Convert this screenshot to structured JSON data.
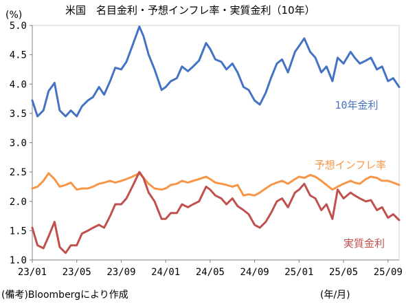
{
  "title": "米国　名目金利・予想インフレ率・実質金利（10年）",
  "source_note": "(備考)Bloombergにより作成",
  "chart_data": {
    "type": "line",
    "title": "米国　名目金利・予想インフレ率・実質金利（10年）",
    "y_unit_label": "(%)",
    "x_unit_label": "(年/月)",
    "ylim": [
      1.0,
      5.0
    ],
    "y_ticks": [
      "1.0",
      "1.5",
      "2.0",
      "2.5",
      "3.0",
      "3.5",
      "4.0",
      "4.5",
      "5.0"
    ],
    "x_ticks": [
      "23/01",
      "23/05",
      "23/09",
      "24/01",
      "24/05",
      "24/09",
      "25/01",
      "25/05",
      "25/09"
    ],
    "x_range": [
      "2023-01",
      "2025-10"
    ],
    "grid": false,
    "legend": "inline labels near right end of each line",
    "series": [
      {
        "name": "10年金利",
        "color": "#4472C4",
        "points": [
          [
            "2023-01",
            3.72
          ],
          [
            "2023-01-15",
            3.45
          ],
          [
            "2023-02",
            3.55
          ],
          [
            "2023-02-15",
            3.88
          ],
          [
            "2023-03",
            4.02
          ],
          [
            "2023-03-15",
            3.55
          ],
          [
            "2023-04",
            3.45
          ],
          [
            "2023-04-15",
            3.55
          ],
          [
            "2023-05",
            3.45
          ],
          [
            "2023-05-15",
            3.62
          ],
          [
            "2023-06",
            3.72
          ],
          [
            "2023-06-15",
            3.78
          ],
          [
            "2023-07",
            3.95
          ],
          [
            "2023-07-15",
            3.82
          ],
          [
            "2023-08",
            4.05
          ],
          [
            "2023-08-15",
            4.28
          ],
          [
            "2023-09",
            4.25
          ],
          [
            "2023-09-15",
            4.38
          ],
          [
            "2023-10",
            4.65
          ],
          [
            "2023-10-20",
            4.98
          ],
          [
            "2023-11",
            4.82
          ],
          [
            "2023-11-15",
            4.5
          ],
          [
            "2023-12",
            4.25
          ],
          [
            "2023-12-20",
            3.9
          ],
          [
            "2024-01",
            3.95
          ],
          [
            "2024-01-15",
            4.05
          ],
          [
            "2024-02",
            4.1
          ],
          [
            "2024-02-15",
            4.3
          ],
          [
            "2024-03",
            4.22
          ],
          [
            "2024-03-15",
            4.3
          ],
          [
            "2024-04",
            4.4
          ],
          [
            "2024-04-20",
            4.7
          ],
          [
            "2024-05",
            4.6
          ],
          [
            "2024-05-15",
            4.42
          ],
          [
            "2024-06",
            4.38
          ],
          [
            "2024-06-15",
            4.25
          ],
          [
            "2024-07",
            4.35
          ],
          [
            "2024-07-15",
            4.2
          ],
          [
            "2024-08",
            3.95
          ],
          [
            "2024-08-15",
            3.9
          ],
          [
            "2024-09",
            3.72
          ],
          [
            "2024-09-15",
            3.65
          ],
          [
            "2024-10",
            3.85
          ],
          [
            "2024-10-15",
            4.1
          ],
          [
            "2024-11",
            4.35
          ],
          [
            "2024-11-15",
            4.42
          ],
          [
            "2024-12",
            4.2
          ],
          [
            "2024-12-20",
            4.55
          ],
          [
            "2025-01",
            4.65
          ],
          [
            "2025-01-15",
            4.78
          ],
          [
            "2025-02",
            4.55
          ],
          [
            "2025-02-15",
            4.45
          ],
          [
            "2025-03",
            4.2
          ],
          [
            "2025-03-15",
            4.3
          ],
          [
            "2025-04",
            4.05
          ],
          [
            "2025-04-15",
            4.45
          ],
          [
            "2025-05",
            4.35
          ],
          [
            "2025-05-20",
            4.55
          ],
          [
            "2025-06",
            4.45
          ],
          [
            "2025-06-15",
            4.35
          ],
          [
            "2025-07",
            4.4
          ],
          [
            "2025-07-15",
            4.45
          ],
          [
            "2025-08",
            4.25
          ],
          [
            "2025-08-15",
            4.3
          ],
          [
            "2025-09",
            4.05
          ],
          [
            "2025-09-15",
            4.1
          ],
          [
            "2025-10",
            3.95
          ]
        ]
      },
      {
        "name": "予想インフレ率",
        "color": "#F79646",
        "points": [
          [
            "2023-01",
            2.22
          ],
          [
            "2023-01-15",
            2.25
          ],
          [
            "2023-02",
            2.35
          ],
          [
            "2023-02-15",
            2.48
          ],
          [
            "2023-03",
            2.38
          ],
          [
            "2023-03-15",
            2.25
          ],
          [
            "2023-04",
            2.28
          ],
          [
            "2023-04-15",
            2.32
          ],
          [
            "2023-05",
            2.2
          ],
          [
            "2023-05-15",
            2.22
          ],
          [
            "2023-06",
            2.22
          ],
          [
            "2023-06-15",
            2.25
          ],
          [
            "2023-07",
            2.3
          ],
          [
            "2023-07-15",
            2.32
          ],
          [
            "2023-08",
            2.35
          ],
          [
            "2023-08-15",
            2.32
          ],
          [
            "2023-09",
            2.35
          ],
          [
            "2023-09-15",
            2.38
          ],
          [
            "2023-10",
            2.42
          ],
          [
            "2023-10-20",
            2.48
          ],
          [
            "2023-11",
            2.4
          ],
          [
            "2023-11-15",
            2.3
          ],
          [
            "2023-12",
            2.22
          ],
          [
            "2023-12-20",
            2.2
          ],
          [
            "2024-01",
            2.22
          ],
          [
            "2024-01-15",
            2.28
          ],
          [
            "2024-02",
            2.3
          ],
          [
            "2024-02-15",
            2.35
          ],
          [
            "2024-03",
            2.32
          ],
          [
            "2024-03-15",
            2.35
          ],
          [
            "2024-04",
            2.38
          ],
          [
            "2024-04-20",
            2.42
          ],
          [
            "2024-05",
            2.38
          ],
          [
            "2024-05-15",
            2.32
          ],
          [
            "2024-06",
            2.3
          ],
          [
            "2024-06-15",
            2.28
          ],
          [
            "2024-07",
            2.25
          ],
          [
            "2024-07-15",
            2.28
          ],
          [
            "2024-08",
            2.1
          ],
          [
            "2024-08-15",
            2.12
          ],
          [
            "2024-09",
            2.1
          ],
          [
            "2024-09-15",
            2.15
          ],
          [
            "2024-10",
            2.22
          ],
          [
            "2024-10-15",
            2.28
          ],
          [
            "2024-11",
            2.32
          ],
          [
            "2024-11-15",
            2.35
          ],
          [
            "2024-12",
            2.3
          ],
          [
            "2024-12-20",
            2.38
          ],
          [
            "2025-01",
            2.42
          ],
          [
            "2025-01-15",
            2.4
          ],
          [
            "2025-02",
            2.45
          ],
          [
            "2025-02-15",
            2.42
          ],
          [
            "2025-03",
            2.35
          ],
          [
            "2025-03-15",
            2.28
          ],
          [
            "2025-04",
            2.2
          ],
          [
            "2025-04-15",
            2.25
          ],
          [
            "2025-05",
            2.3
          ],
          [
            "2025-05-20",
            2.35
          ],
          [
            "2025-06",
            2.32
          ],
          [
            "2025-06-15",
            2.3
          ],
          [
            "2025-07",
            2.38
          ],
          [
            "2025-07-15",
            2.42
          ],
          [
            "2025-08",
            2.4
          ],
          [
            "2025-08-15",
            2.35
          ],
          [
            "2025-09",
            2.35
          ],
          [
            "2025-09-15",
            2.32
          ],
          [
            "2025-10",
            2.28
          ]
        ]
      },
      {
        "name": "実質金利",
        "color": "#C0504D",
        "points": [
          [
            "2023-01",
            1.55
          ],
          [
            "2023-01-15",
            1.25
          ],
          [
            "2023-02",
            1.2
          ],
          [
            "2023-02-15",
            1.4
          ],
          [
            "2023-03",
            1.65
          ],
          [
            "2023-03-15",
            1.22
          ],
          [
            "2023-04",
            1.12
          ],
          [
            "2023-04-15",
            1.25
          ],
          [
            "2023-05",
            1.25
          ],
          [
            "2023-05-15",
            1.45
          ],
          [
            "2023-06",
            1.5
          ],
          [
            "2023-06-15",
            1.55
          ],
          [
            "2023-07",
            1.6
          ],
          [
            "2023-07-15",
            1.55
          ],
          [
            "2023-08",
            1.75
          ],
          [
            "2023-08-15",
            1.95
          ],
          [
            "2023-09",
            1.95
          ],
          [
            "2023-09-15",
            2.05
          ],
          [
            "2023-10",
            2.25
          ],
          [
            "2023-10-20",
            2.5
          ],
          [
            "2023-11",
            2.4
          ],
          [
            "2023-11-15",
            2.15
          ],
          [
            "2023-12",
            2.0
          ],
          [
            "2023-12-20",
            1.7
          ],
          [
            "2024-01",
            1.7
          ],
          [
            "2024-01-15",
            1.8
          ],
          [
            "2024-02",
            1.8
          ],
          [
            "2024-02-15",
            1.95
          ],
          [
            "2024-03",
            1.9
          ],
          [
            "2024-03-15",
            1.95
          ],
          [
            "2024-04",
            2.0
          ],
          [
            "2024-04-20",
            2.25
          ],
          [
            "2024-05",
            2.2
          ],
          [
            "2024-05-15",
            2.1
          ],
          [
            "2024-06",
            2.05
          ],
          [
            "2024-06-15",
            1.95
          ],
          [
            "2024-07",
            2.05
          ],
          [
            "2024-07-15",
            1.92
          ],
          [
            "2024-08",
            1.85
          ],
          [
            "2024-08-15",
            1.78
          ],
          [
            "2024-09",
            1.6
          ],
          [
            "2024-09-15",
            1.55
          ],
          [
            "2024-10",
            1.65
          ],
          [
            "2024-10-15",
            1.8
          ],
          [
            "2024-11",
            2.0
          ],
          [
            "2024-11-15",
            2.05
          ],
          [
            "2024-12",
            1.9
          ],
          [
            "2024-12-20",
            2.15
          ],
          [
            "2025-01",
            2.2
          ],
          [
            "2025-01-15",
            2.3
          ],
          [
            "2025-02",
            2.1
          ],
          [
            "2025-02-15",
            2.05
          ],
          [
            "2025-03",
            1.85
          ],
          [
            "2025-03-15",
            1.95
          ],
          [
            "2025-04",
            1.7
          ],
          [
            "2025-04-15",
            2.2
          ],
          [
            "2025-05",
            2.05
          ],
          [
            "2025-05-20",
            2.15
          ],
          [
            "2025-06",
            2.1
          ],
          [
            "2025-06-15",
            2.05
          ],
          [
            "2025-07",
            2.0
          ],
          [
            "2025-07-15",
            2.02
          ],
          [
            "2025-08",
            1.85
          ],
          [
            "2025-08-15",
            1.9
          ],
          [
            "2025-09",
            1.72
          ],
          [
            "2025-09-15",
            1.78
          ],
          [
            "2025-10",
            1.68
          ]
        ]
      }
    ]
  }
}
